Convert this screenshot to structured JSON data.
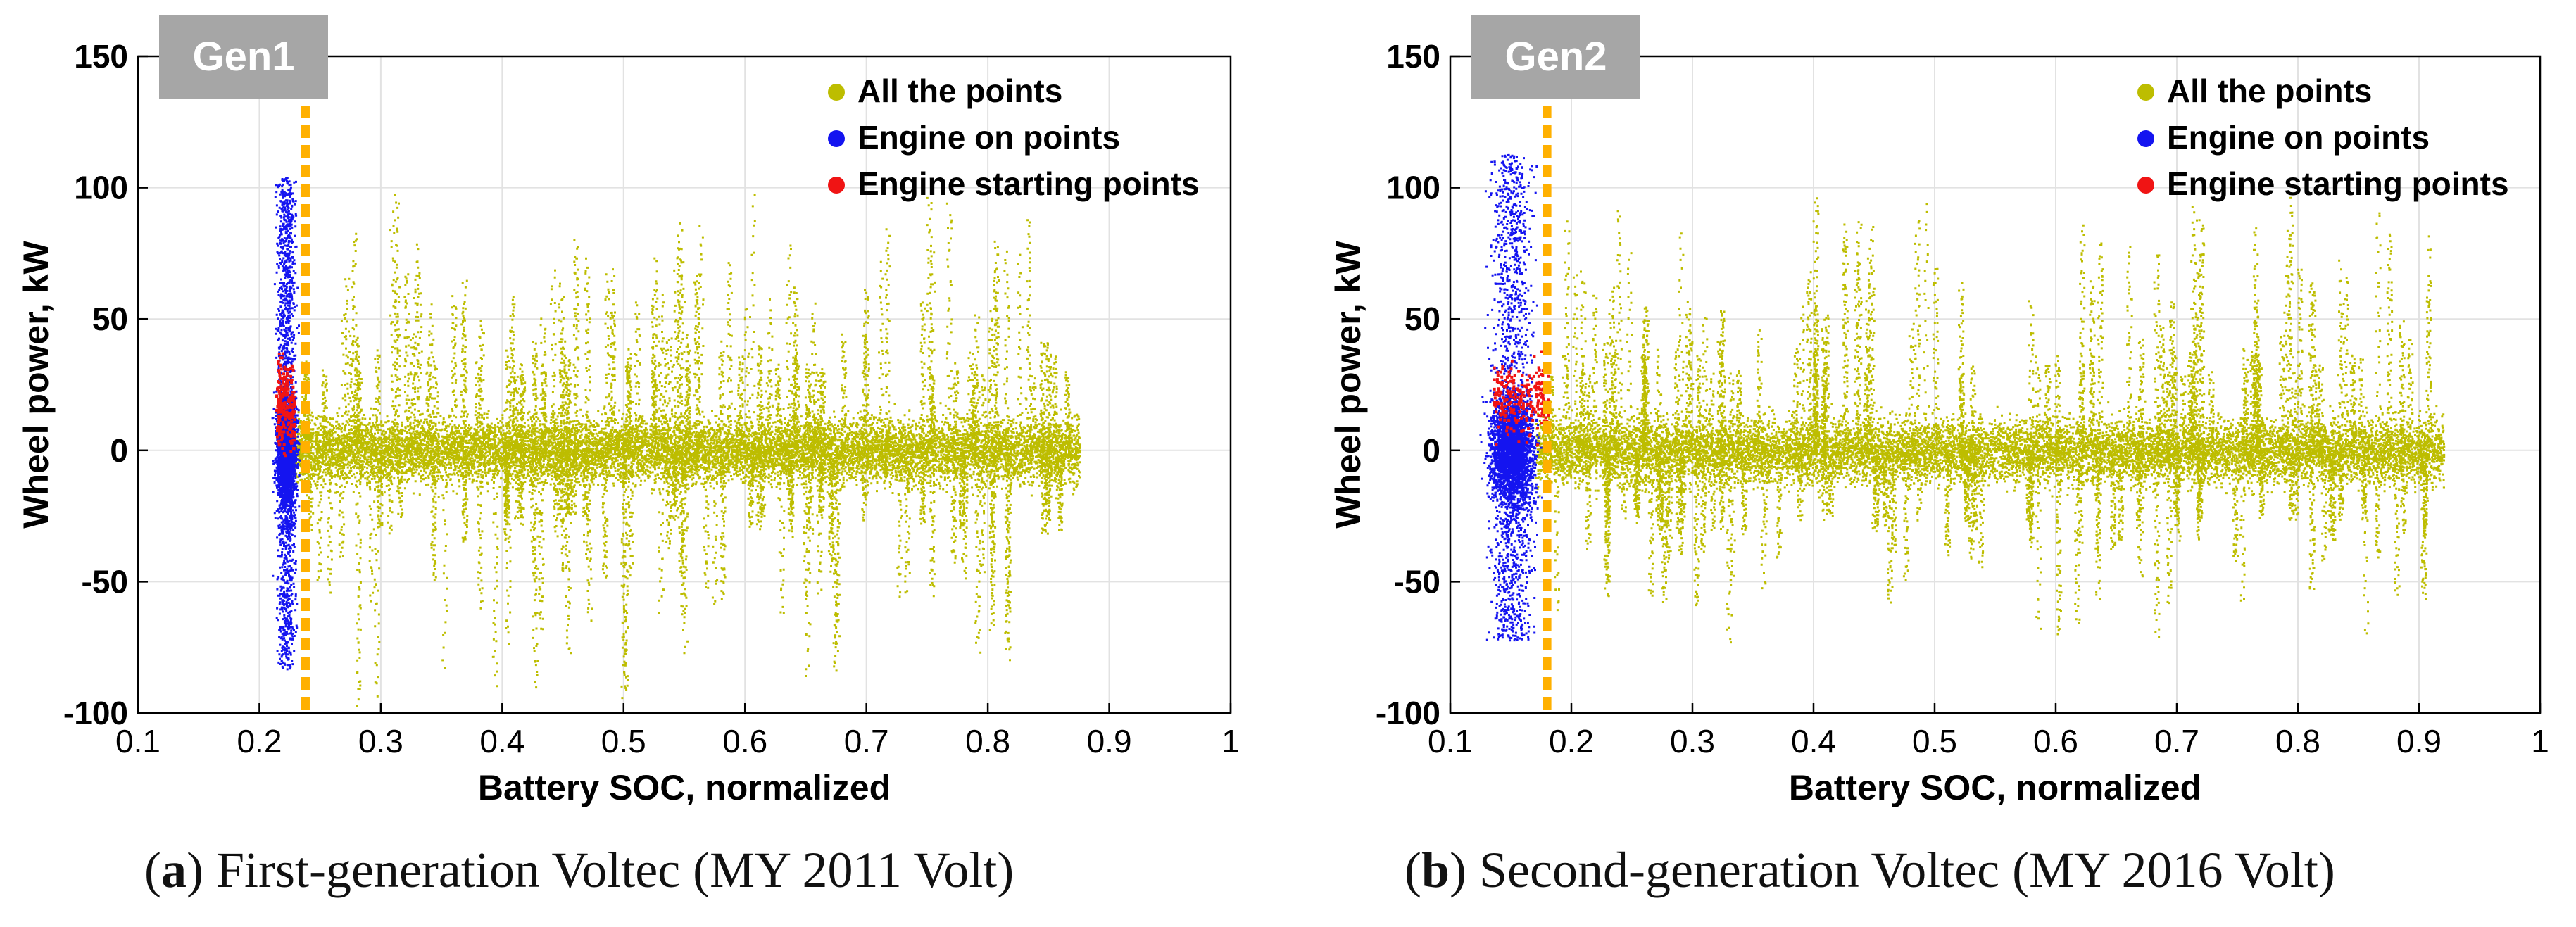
{
  "figure": {
    "captions": [
      {
        "letter": "a",
        "text": "First-generation Voltec (MY 2011 Volt)"
      },
      {
        "letter": "b",
        "text": "Second-generation Voltec (MY 2016 Volt)"
      }
    ]
  },
  "colors": {
    "all_points": "#BDBD00",
    "engine_on": "#1414F0",
    "engine_start": "#F01414",
    "threshold_line": "#FFB000",
    "badge_bg": "#A6A6A6",
    "badge_text": "#FFFFFF",
    "grid": "#E2E2E2",
    "axis": "#000000"
  },
  "chart_data": [
    {
      "type": "scatter",
      "badge": "Gen1",
      "title": "",
      "xlabel": "Battery SOC, normalized",
      "ylabel": "Wheel power, kW",
      "xlim": [
        0.1,
        1.0
      ],
      "ylim": [
        -100,
        150
      ],
      "xticks": [
        0.1,
        0.2,
        0.3,
        0.4,
        0.5,
        0.6,
        0.7,
        0.8,
        0.9,
        1.0
      ],
      "xtick_labels": [
        "0.1",
        "0.2",
        "0.3",
        "0.4",
        "0.5",
        "0.6",
        "0.7",
        "0.8",
        "0.9",
        "1"
      ],
      "yticks": [
        -100,
        -50,
        0,
        50,
        100,
        150
      ],
      "ytick_labels": [
        "-100",
        "-50",
        "0",
        "50",
        "100",
        "150"
      ],
      "grid": true,
      "legend_position": "top-right",
      "threshold_soc": 0.238,
      "series": [
        {
          "name": "All the points",
          "key": "all",
          "soc_range": [
            0.225,
            0.875
          ],
          "p_range": [
            -98,
            100
          ],
          "typical_band": [
            -30,
            35
          ]
        },
        {
          "name": "Engine on points",
          "key": "engine_on",
          "soc_range": [
            0.208,
            0.235
          ],
          "p_range": [
            -83,
            104
          ]
        },
        {
          "name": "Engine starting points",
          "key": "engine_start",
          "soc_range": [
            0.213,
            0.228
          ],
          "p_range": [
            -5,
            40
          ]
        }
      ]
    },
    {
      "type": "scatter",
      "badge": "Gen2",
      "title": "",
      "xlabel": "Battery SOC, normalized",
      "ylabel": "Wheel power, kW",
      "xlim": [
        0.1,
        1.0
      ],
      "ylim": [
        -100,
        150
      ],
      "xticks": [
        0.1,
        0.2,
        0.3,
        0.4,
        0.5,
        0.6,
        0.7,
        0.8,
        0.9,
        1.0
      ],
      "xtick_labels": [
        "0.1",
        "0.2",
        "0.3",
        "0.4",
        "0.5",
        "0.6",
        "0.7",
        "0.8",
        "0.9",
        "1"
      ],
      "yticks": [
        -100,
        -50,
        0,
        50,
        100,
        150
      ],
      "ytick_labels": [
        "-100",
        "-50",
        "0",
        "50",
        "100",
        "150"
      ],
      "grid": true,
      "legend_position": "top-right",
      "threshold_soc": 0.18,
      "series": [
        {
          "name": "All the points",
          "key": "all",
          "soc_range": [
            0.17,
            0.92
          ],
          "p_range": [
            -75,
            100
          ],
          "typical_band": [
            -30,
            35
          ]
        },
        {
          "name": "Engine on points",
          "key": "engine_on",
          "soc_range": [
            0.12,
            0.18
          ],
          "p_range": [
            -72,
            113
          ]
        },
        {
          "name": "Engine starting points",
          "key": "engine_start",
          "soc_range": [
            0.135,
            0.18
          ],
          "p_range": [
            0,
            40
          ]
        }
      ]
    }
  ]
}
